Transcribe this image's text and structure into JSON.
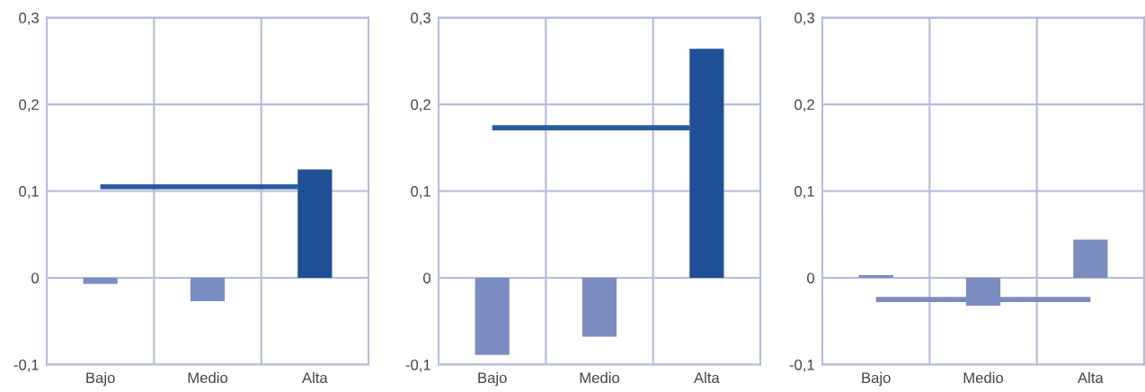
{
  "chart_data": [
    {
      "type": "bar",
      "categories": [
        "Bajo",
        "Medio",
        "Alta"
      ],
      "ylim": [
        -0.1,
        0.3
      ],
      "yticks": [
        {
          "value": -0.1,
          "label": "-0,1"
        },
        0,
        {
          "value": 0.1,
          "label": "0,1"
        },
        {
          "value": 0.2,
          "label": "0,2"
        },
        {
          "value": 0.3,
          "label": "0,3"
        }
      ],
      "grid": true,
      "series": [
        {
          "colors": [
            "#7b8cc0",
            "#7b8cc0",
            "#1f5096"
          ],
          "values": [
            -0.007,
            -0.027,
            0.125
          ]
        }
      ],
      "ref_lines": [
        {
          "axis": "y",
          "value": 0.105,
          "color": "#2a5aa0"
        }
      ]
    },
    {
      "type": "bar",
      "categories": [
        "Bajo",
        "Medio",
        "Alta"
      ],
      "ylim": [
        -0.1,
        0.3
      ],
      "yticks": [
        {
          "value": -0.1,
          "label": "-0,1"
        },
        0,
        {
          "value": 0.1,
          "label": "0,1"
        },
        {
          "value": 0.2,
          "label": "0,2"
        },
        {
          "value": 0.3,
          "label": "0,3"
        }
      ],
      "grid": true,
      "series": [
        {
          "colors": [
            "#7b8cc0",
            "#7b8cc0",
            "#1f5096"
          ],
          "values": [
            -0.089,
            -0.068,
            0.264
          ]
        }
      ],
      "ref_lines": [
        {
          "axis": "y",
          "value": 0.173,
          "color": "#2a5aa0"
        }
      ]
    },
    {
      "type": "bar",
      "categories": [
        "Bajo",
        "Medio",
        "Alta"
      ],
      "ylim": [
        -0.1,
        0.3
      ],
      "yticks": [
        {
          "value": -0.1,
          "label": "-0,1"
        },
        0,
        {
          "value": 0.1,
          "label": "0,1"
        },
        {
          "value": 0.2,
          "label": "0,2"
        },
        {
          "value": 0.3,
          "label": "0,3"
        }
      ],
      "grid": true,
      "series": [
        {
          "colors": [
            "#7b8cc0",
            "#7b8cc0",
            "#7b8cc0"
          ],
          "values": [
            0.003,
            -0.032,
            0.044
          ]
        }
      ],
      "ref_lines": [
        {
          "axis": "y",
          "value": -0.025,
          "color": "#7b8cc0"
        }
      ]
    }
  ]
}
